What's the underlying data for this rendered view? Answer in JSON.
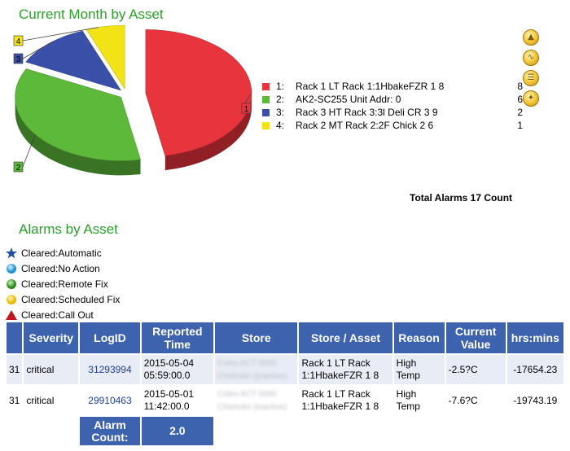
{
  "current_month": {
    "title": "Current Month by Asset",
    "total_label": "Total Alarms 17 Count"
  },
  "chart_data": {
    "type": "pie",
    "title": "Current Month by Asset",
    "legend_position": "right",
    "slices": [
      {
        "index": "1",
        "label": "Rack 1 LT Rack 1:1HbakeFZR 1 8",
        "value": 8,
        "color": "#e8343c"
      },
      {
        "index": "2",
        "label": "AK2-SC255 Unit Addr: 0",
        "value": 6,
        "color": "#5cb93a"
      },
      {
        "index": "3",
        "label": "Rack 3 HT Rack 3:3l Deli CR 3 9",
        "value": 2,
        "color": "#3a4fa8"
      },
      {
        "index": "4",
        "label": "Rack 2 MT Rack 2:2F Chick 2 6",
        "value": 1,
        "color": "#f2e317"
      }
    ]
  },
  "legend_items": [
    {
      "index": "1:",
      "label": "Rack 1 LT Rack 1:1HbakeFZR 1 8",
      "value": "8"
    },
    {
      "index": "2:",
      "label": "AK2-SC255 Unit Addr: 0",
      "value": "6"
    },
    {
      "index": "3:",
      "label": "Rack 3 HT Rack 3:3l Deli CR 3 9",
      "value": "2"
    },
    {
      "index": "4:",
      "label": "Rack 2 MT Rack 2:2F Chick 2 6",
      "value": "1"
    }
  ],
  "tool_icons": [
    "chart-icon",
    "wave-icon",
    "list-icon",
    "wrench-icon"
  ],
  "alarms": {
    "title": "Alarms by Asset",
    "status_legend": [
      {
        "label": "Cleared:Automatic",
        "icon": "blue-star-icon"
      },
      {
        "label": "Cleared:No Action",
        "icon": "blue-circle-icon"
      },
      {
        "label": "Cleared:Remote Fix",
        "icon": "green-circle-icon"
      },
      {
        "label": "Cleared:Scheduled Fix",
        "icon": "yellow-circle-icon"
      },
      {
        "label": "Cleared:Call Out",
        "icon": "red-triangle-icon"
      }
    ],
    "columns": [
      "",
      "Severity",
      "LogID",
      "Reported Time",
      "Store",
      "Store / Asset",
      "Reason",
      "Current Value",
      "hrs:mins"
    ],
    "rows": [
      {
        "num": "31",
        "severity": "critical",
        "logid": "31293994",
        "reported": "2015-05-04 05:59:00.0",
        "store": "Coles ACT 0000 Chisholm (inactive)",
        "asset": "Rack 1 LT Rack 1:1HbakeFZR 1 8",
        "reason": "High Temp",
        "value": "-2.5?C",
        "hrs": "-17654.23"
      },
      {
        "num": "31",
        "severity": "critical",
        "logid": "29910463",
        "reported": "2015-05-01 11:42:00.0",
        "store": "Coles ACT 0000 Chisholm (inactive)",
        "asset": "Rack 1 LT Rack 1:1HbakeFZR 1 8",
        "reason": "High Temp",
        "value": "-7.6?C",
        "hrs": "-19743.19"
      }
    ],
    "alarm_count_label": "Alarm Count:",
    "alarm_count_value": "2.0"
  }
}
